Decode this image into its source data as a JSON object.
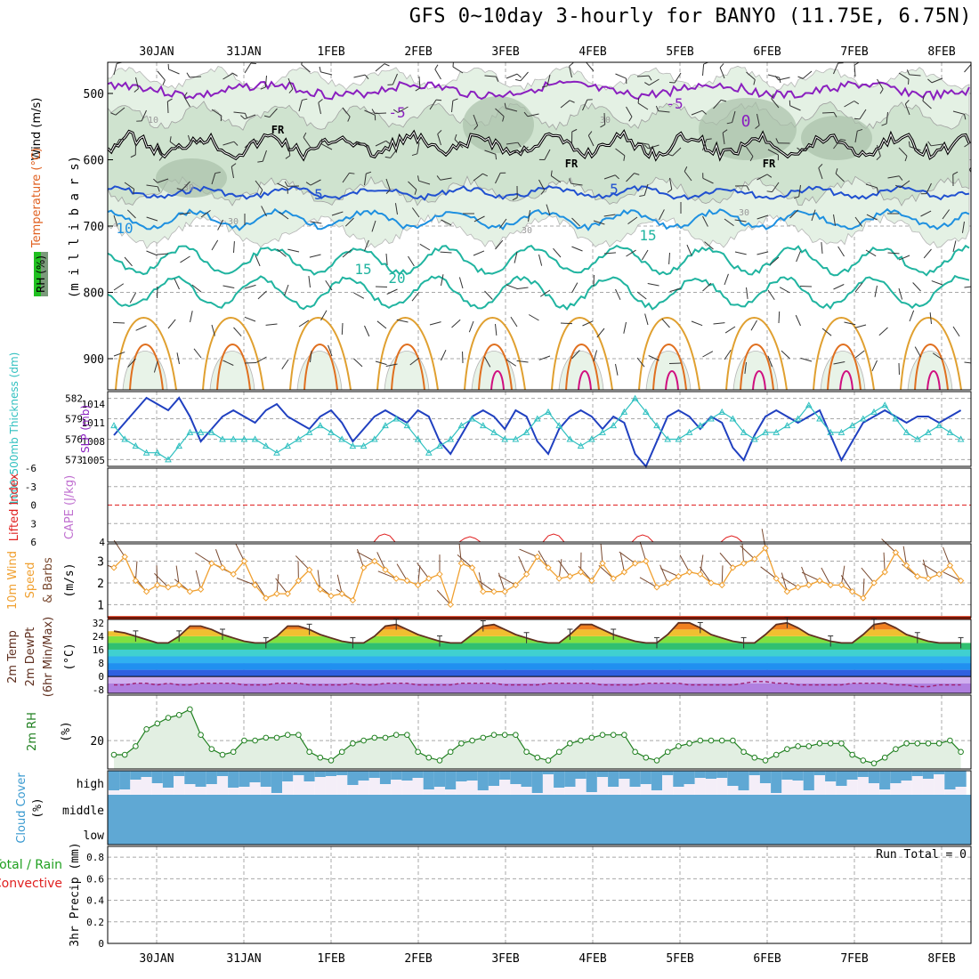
{
  "title": "GFS 0~10day 3-hourly for BANYO (11.75E, 6.75N)",
  "colors": {
    "wind_label": "#000000",
    "temperature_label": "#e06020",
    "rh_badge_bg": "#20c020",
    "pressure_axis": "#000000",
    "temp_purple": "#8a1fbf",
    "temp_blue": "#2050d0",
    "temp_lightblue": "#1e90e0",
    "temp_teal": "#20b4a0",
    "temp_orange": "#e0a030",
    "temp_red": "#d02020",
    "temp_magenta": "#d01080",
    "freezing": "#000000",
    "slp_line": "#2040c0",
    "thickness_line": "#30c0c0",
    "cape_text": "#c070d0",
    "li_text": "#e02020",
    "wind10_line": "#f0a030",
    "barb": "#7a4a30",
    "rh2m": "#208020",
    "cloud": "#5fa8d4",
    "precip_total": "#20a020",
    "precip_conv": "#e02020"
  },
  "x_axis": {
    "top_labels": [
      "30JAN",
      "31JAN",
      "1FEB",
      "2FEB",
      "3FEB",
      "4FEB",
      "5FEB",
      "6FEB",
      "7FEB",
      "8FEB"
    ],
    "bottom_labels": [
      "30JAN",
      "31JAN",
      "1FEB",
      "2FEB",
      "3FEB",
      "4FEB",
      "5FEB",
      "6FEB",
      "7FEB",
      "8FEB"
    ]
  },
  "panels": {
    "upper": {
      "ylabel_wind": "Wind (m/s)",
      "ylabel_temperature": "Temperature (°C)",
      "ylabel_rh": "RH (%)",
      "ylabel_pressure": "(m i l l i b a r s)",
      "yticks": [
        "500",
        "600",
        "700",
        "800",
        "900"
      ],
      "contour_labels": [
        "-5",
        "-5",
        "0",
        "FR",
        "FR",
        "FR",
        "5",
        "5",
        "10",
        "15",
        "15",
        "20",
        "10",
        "30",
        "30",
        "30",
        "30",
        "30"
      ]
    },
    "slp": {
      "ylabel_thickness": "1000-500mb Thickness (dm)",
      "ylabel_slp": "SLP (mb)",
      "left_ticks": [
        "582",
        "579",
        "576",
        "573"
      ],
      "right_ticks": [
        "1014",
        "1011",
        "1008",
        "1005"
      ]
    },
    "li": {
      "ylabel_li": "Lifted Index",
      "ylabel_cape": "CAPE (J/kg)",
      "left_ticks": [
        "-6",
        "-3",
        "0",
        "3",
        "6"
      ],
      "right_ticks": [
        "4"
      ]
    },
    "wind10": {
      "ylabel_a": "10m Wind",
      "ylabel_b": "Speed",
      "ylabel_c": "& Barbs",
      "ylabel_units": "(m/s)",
      "yticks": [
        "3",
        "2",
        "1"
      ]
    },
    "temp2m": {
      "ylabel_a": "2m Temp",
      "ylabel_b": "2m DewPt",
      "ylabel_c": "(6hr Min/Max)",
      "ylabel_units": "(°C)",
      "yticks": [
        "32",
        "24",
        "16",
        "8",
        "0",
        "-8"
      ]
    },
    "rh2m": {
      "ylabel": "2m RH",
      "ylabel_units": "(%)",
      "yticks": [
        "20"
      ]
    },
    "cloud": {
      "ylabel": "Cloud Cover",
      "ylabel_units": "(%)",
      "levels": [
        "high",
        "middle",
        "low"
      ]
    },
    "precip": {
      "ylabel_a": "Total / Rain",
      "ylabel_b": "Convective",
      "ylabel_c": "3hr Precip (mm)",
      "yticks": [
        "0.8",
        "0.6",
        "0.4",
        "0.2",
        "0"
      ],
      "run_total": "Run Total = 0"
    }
  },
  "chart_data": [
    {
      "type": "line",
      "title": "",
      "xlabel": "",
      "ylabel": "SLP (mb)",
      "ylim": [
        1004,
        1016
      ],
      "x": [
        0,
        1,
        2,
        3,
        4,
        5,
        6,
        7,
        8,
        9,
        10,
        11,
        12,
        13,
        14,
        15,
        16,
        17,
        18,
        19,
        20,
        21,
        22,
        23,
        24,
        25,
        26,
        27,
        28,
        29,
        30,
        31,
        32,
        33,
        34,
        35,
        36,
        37,
        38,
        39,
        40,
        41,
        42,
        43,
        44,
        45,
        46,
        47,
        48,
        49,
        50,
        51,
        52,
        53,
        54,
        55,
        56,
        57,
        58,
        59,
        60,
        61,
        62,
        63,
        64,
        65,
        66,
        67,
        68,
        69,
        70,
        71,
        72,
        73,
        74,
        75,
        76,
        77,
        78
      ],
      "series": [
        {
          "name": "SLP",
          "values": [
            1009,
            1011,
            1013,
            1015,
            1014,
            1013,
            1015,
            1012,
            1008,
            1010,
            1012,
            1013,
            1012,
            1011,
            1013,
            1014,
            1012,
            1011,
            1010,
            1012,
            1013,
            1011,
            1008,
            1010,
            1012,
            1013,
            1012,
            1011,
            1013,
            1012,
            1008,
            1006,
            1009,
            1012,
            1013,
            1012,
            1010,
            1013,
            1012,
            1008,
            1006,
            1010,
            1012,
            1013,
            1012,
            1010,
            1012,
            1011,
            1006,
            1004,
            1008,
            1012,
            1013,
            1012,
            1010,
            1012,
            1011,
            1007,
            1005,
            1009,
            1012,
            1013,
            1012,
            1011,
            1012,
            1013,
            1009,
            1005,
            1008,
            1011,
            1012,
            1013,
            1012,
            1011,
            1012,
            1012,
            1011,
            1012,
            1013
          ]
        }
      ]
    },
    {
      "type": "line",
      "title": "",
      "xlabel": "",
      "ylabel": "1000-500mb Thickness (dm)",
      "ylim": [
        572,
        583
      ],
      "x": [
        0,
        1,
        2,
        3,
        4,
        5,
        6,
        7,
        8,
        9,
        10,
        11,
        12,
        13,
        14,
        15,
        16,
        17,
        18,
        19,
        20,
        21,
        22,
        23,
        24,
        25,
        26,
        27,
        28,
        29,
        30,
        31,
        32,
        33,
        34,
        35,
        36,
        37,
        38,
        39,
        40,
        41,
        42,
        43,
        44,
        45,
        46,
        47,
        48,
        49,
        50,
        51,
        52,
        53,
        54,
        55,
        56,
        57,
        58,
        59,
        60,
        61,
        62,
        63,
        64,
        65,
        66,
        67,
        68,
        69,
        70,
        71,
        72,
        73,
        74,
        75,
        76,
        77,
        78
      ],
      "series": [
        {
          "name": "Thickness",
          "values": [
            578,
            576,
            575,
            574,
            574,
            573,
            575,
            577,
            577,
            577,
            576,
            576,
            576,
            576,
            575,
            574,
            575,
            576,
            577,
            578,
            577,
            576,
            575,
            575,
            576,
            578,
            579,
            578,
            576,
            574,
            575,
            576,
            578,
            579,
            578,
            577,
            576,
            576,
            577,
            579,
            580,
            578,
            576,
            575,
            576,
            577,
            578,
            580,
            582,
            580,
            578,
            576,
            576,
            577,
            578,
            579,
            580,
            579,
            577,
            576,
            577,
            577,
            578,
            579,
            581,
            579,
            577,
            577,
            578,
            579,
            580,
            581,
            579,
            577,
            576,
            577,
            578,
            577,
            576
          ]
        }
      ]
    },
    {
      "type": "line",
      "title": "",
      "xlabel": "",
      "ylabel": "10m Wind Speed (m/s)",
      "ylim": [
        0.4,
        3.8
      ],
      "x": [
        0,
        1,
        2,
        3,
        4,
        5,
        6,
        7,
        8,
        9,
        10,
        11,
        12,
        13,
        14,
        15,
        16,
        17,
        18,
        19,
        20,
        21,
        22,
        23,
        24,
        25,
        26,
        27,
        28,
        29,
        30,
        31,
        32,
        33,
        34,
        35,
        36,
        37,
        38,
        39,
        40,
        41,
        42,
        43,
        44,
        45,
        46,
        47,
        48,
        49,
        50,
        51,
        52,
        53,
        54,
        55,
        56,
        57,
        58,
        59,
        60,
        61,
        62,
        63,
        64,
        65,
        66,
        67,
        68,
        69,
        70,
        71,
        72,
        73,
        74,
        75,
        76,
        77,
        78
      ],
      "series": [
        {
          "name": "Speed",
          "values": [
            2.7,
            3.2,
            2.1,
            1.6,
            1.9,
            1.8,
            1.9,
            1.6,
            1.7,
            2.9,
            2.7,
            2.4,
            3.0,
            1.9,
            1.3,
            1.5,
            1.5,
            2.1,
            2.6,
            1.7,
            1.4,
            1.5,
            1.2,
            2.7,
            3.0,
            2.6,
            2.2,
            2.1,
            1.9,
            2.2,
            2.4,
            1.0,
            2.9,
            2.7,
            1.6,
            1.6,
            1.6,
            1.9,
            2.4,
            3.2,
            2.7,
            2.2,
            2.3,
            2.5,
            2.1,
            2.9,
            2.2,
            2.5,
            2.9,
            3.0,
            1.8,
            2.0,
            2.3,
            2.5,
            2.4,
            2.0,
            1.9,
            2.7,
            2.9,
            3.1,
            3.6,
            2.2,
            1.6,
            1.8,
            1.9,
            2.1,
            1.9,
            1.9,
            1.6,
            1.3,
            2.0,
            2.5,
            3.4,
            2.8,
            2.3,
            2.2,
            2.4,
            2.8,
            2.1
          ]
        }
      ]
    },
    {
      "type": "line",
      "title": "",
      "xlabel": "",
      "ylabel": "2m Temp (°C)",
      "ylim": [
        -10,
        34
      ],
      "x": [
        0,
        1,
        2,
        3,
        4,
        5,
        6,
        7,
        8,
        9,
        10,
        11,
        12,
        13,
        14,
        15,
        16,
        17,
        18,
        19,
        20,
        21,
        22,
        23,
        24,
        25,
        26,
        27,
        28,
        29,
        30,
        31,
        32,
        33,
        34,
        35,
        36,
        37,
        38,
        39,
        40,
        41,
        42,
        43,
        44,
        45,
        46,
        47,
        48,
        49,
        50,
        51,
        52,
        53,
        54,
        55,
        56,
        57,
        58,
        59,
        60,
        61,
        62,
        63,
        64,
        65,
        66,
        67,
        68,
        69,
        70,
        71,
        72,
        73,
        74,
        75,
        76,
        77,
        78
      ],
      "series": [
        {
          "name": "Temp",
          "values": [
            27,
            26,
            24,
            22,
            20,
            20,
            24,
            30,
            30,
            28,
            25,
            23,
            21,
            20,
            20,
            24,
            30,
            30,
            28,
            25,
            23,
            21,
            20,
            20,
            24,
            30,
            31,
            28,
            25,
            23,
            21,
            20,
            20,
            25,
            30,
            31,
            28,
            25,
            23,
            21,
            20,
            20,
            25,
            31,
            31,
            28,
            25,
            23,
            21,
            20,
            20,
            25,
            32,
            32,
            29,
            25,
            23,
            21,
            20,
            20,
            25,
            31,
            32,
            29,
            25,
            23,
            21,
            20,
            20,
            25,
            31,
            32,
            29,
            25,
            23,
            21,
            20,
            20,
            20
          ]
        },
        {
          "name": "DewPt",
          "values": [
            -5,
            -5,
            -4,
            -4,
            -5,
            -4,
            -5,
            -5,
            -4,
            -4,
            -4,
            -4,
            -5,
            -5,
            -5,
            -4,
            -4,
            -4,
            -5,
            -5,
            -5,
            -5,
            -4,
            -5,
            -5,
            -4,
            -4,
            -4,
            -5,
            -5,
            -5,
            -5,
            -4,
            -4,
            -4,
            -4,
            -5,
            -5,
            -5,
            -5,
            -4,
            -4,
            -4,
            -4,
            -4,
            -5,
            -5,
            -5,
            -5,
            -4,
            -4,
            -4,
            -4,
            -5,
            -5,
            -5,
            -5,
            -5,
            -4,
            -3,
            -3,
            -4,
            -4,
            -5,
            -5,
            -5,
            -5,
            -5,
            -4,
            -4,
            -4,
            -4,
            -5,
            -5,
            -6,
            -6,
            -5,
            -5,
            -5
          ]
        }
      ]
    },
    {
      "type": "line",
      "title": "",
      "xlabel": "",
      "ylabel": "2m RH (%)",
      "ylim": [
        10,
        36
      ],
      "x": [
        0,
        1,
        2,
        3,
        4,
        5,
        6,
        7,
        8,
        9,
        10,
        11,
        12,
        13,
        14,
        15,
        16,
        17,
        18,
        19,
        20,
        21,
        22,
        23,
        24,
        25,
        26,
        27,
        28,
        29,
        30,
        31,
        32,
        33,
        34,
        35,
        36,
        37,
        38,
        39,
        40,
        41,
        42,
        43,
        44,
        45,
        46,
        47,
        48,
        49,
        50,
        51,
        52,
        53,
        54,
        55,
        56,
        57,
        58,
        59,
        60,
        61,
        62,
        63,
        64,
        65,
        66,
        67,
        68,
        69,
        70,
        71,
        72,
        73,
        74,
        75,
        76,
        77,
        78
      ],
      "series": [
        {
          "name": "RH",
          "values": [
            15,
            15,
            18,
            24,
            26,
            28,
            29,
            31,
            22,
            17,
            15,
            16,
            20,
            20,
            21,
            21,
            22,
            22,
            16,
            14,
            13,
            16,
            19,
            20,
            21,
            21,
            22,
            22,
            16,
            14,
            13,
            16,
            19,
            20,
            21,
            22,
            22,
            22,
            16,
            14,
            13,
            16,
            19,
            20,
            21,
            22,
            22,
            22,
            16,
            14,
            13,
            16,
            18,
            19,
            20,
            20,
            20,
            20,
            16,
            14,
            13,
            15,
            17,
            18,
            18,
            19,
            19,
            19,
            15,
            13,
            12,
            14,
            17,
            19,
            19,
            19,
            19,
            20,
            16
          ]
        }
      ]
    },
    {
      "type": "bar",
      "title": "",
      "xlabel": "",
      "ylabel": "3hr Precip (mm)",
      "ylim": [
        0,
        0.9
      ],
      "categories": [
        "30JAN",
        "31JAN",
        "1FEB",
        "2FEB",
        "3FEB",
        "4FEB",
        "5FEB",
        "6FEB",
        "7FEB",
        "8FEB"
      ],
      "series": [
        {
          "name": "Total / Rain",
          "values": [
            0,
            0,
            0,
            0,
            0,
            0,
            0,
            0,
            0,
            0
          ]
        },
        {
          "name": "Convective",
          "values": [
            0,
            0,
            0,
            0,
            0,
            0,
            0,
            0,
            0,
            0
          ]
        }
      ]
    }
  ]
}
